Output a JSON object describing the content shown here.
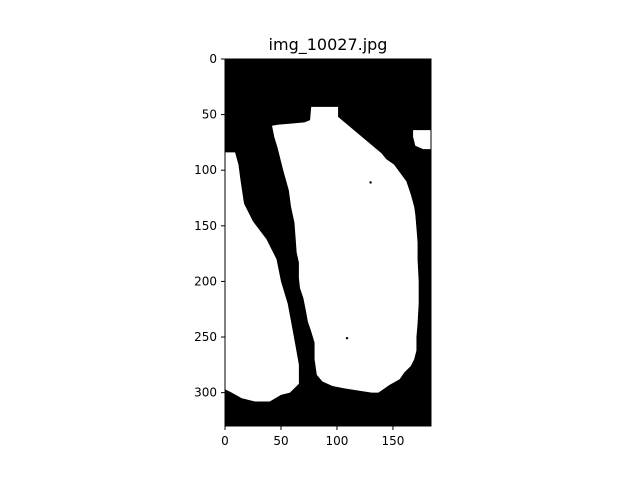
{
  "chart_data": {
    "type": "heatmap",
    "title": "img_10027.jpg",
    "xlabel": "",
    "ylabel": "",
    "xlim": [
      0,
      184
    ],
    "ylim": [
      330,
      0
    ],
    "x_ticks": [
      0,
      50,
      100,
      150
    ],
    "y_ticks": [
      0,
      50,
      100,
      150,
      200,
      250,
      300
    ],
    "colormap": "binary (black background, white foreground)",
    "colors": {
      "background": "#000000",
      "foreground": "#ffffff"
    },
    "regions": [
      {
        "name": "",
        "polygon": [
          [
            77,
            43
          ],
          [
            101,
            43
          ],
          [
            101,
            52
          ],
          [
            140,
            85
          ],
          [
            144,
            90
          ],
          [
            151,
            95
          ],
          [
            162,
            110
          ],
          [
            166,
            122
          ],
          [
            169,
            133
          ],
          [
            170,
            140
          ],
          [
            171,
            152
          ],
          [
            172,
            165
          ],
          [
            172,
            180
          ],
          [
            173,
            200
          ],
          [
            173,
            220
          ],
          [
            172,
            238
          ],
          [
            171,
            250
          ],
          [
            171,
            262
          ],
          [
            169,
            270
          ],
          [
            166,
            276
          ],
          [
            160,
            282
          ],
          [
            156,
            288
          ],
          [
            147,
            293
          ],
          [
            137,
            300
          ],
          [
            131,
            300
          ],
          [
            118,
            298
          ],
          [
            106,
            296
          ],
          [
            96,
            294
          ],
          [
            87,
            290
          ],
          [
            82,
            284
          ],
          [
            80,
            270
          ],
          [
            80,
            255
          ],
          [
            77,
            245
          ],
          [
            74,
            236
          ],
          [
            72,
            225
          ],
          [
            70,
            215
          ],
          [
            67,
            206
          ],
          [
            66,
            197
          ],
          [
            66,
            183
          ],
          [
            64,
            174
          ],
          [
            63,
            160
          ],
          [
            62,
            147
          ],
          [
            59,
            133
          ],
          [
            57,
            118
          ],
          [
            52,
            100
          ],
          [
            49,
            88
          ],
          [
            47,
            80
          ],
          [
            44,
            70
          ],
          [
            42,
            60
          ],
          [
            48,
            59
          ],
          [
            60,
            58
          ],
          [
            71,
            57
          ],
          [
            76,
            55
          ]
        ]
      },
      {
        "name": "",
        "polygon": [
          [
            0,
            84
          ],
          [
            9,
            84
          ],
          [
            12,
            95
          ],
          [
            14,
            110
          ],
          [
            17,
            130
          ],
          [
            25,
            146
          ],
          [
            37,
            162
          ],
          [
            46,
            180
          ],
          [
            50,
            200
          ],
          [
            56,
            220
          ],
          [
            59,
            236
          ],
          [
            63,
            258
          ],
          [
            66,
            275
          ],
          [
            66,
            292
          ],
          [
            58,
            300
          ],
          [
            50,
            302
          ],
          [
            40,
            308
          ],
          [
            27,
            308
          ],
          [
            15,
            305
          ],
          [
            6,
            300
          ],
          [
            0,
            297
          ]
        ]
      },
      {
        "name": "",
        "polygon": [
          [
            168,
            64
          ],
          [
            184,
            64
          ],
          [
            184,
            81
          ],
          [
            177,
            81
          ],
          [
            170,
            78
          ],
          [
            168,
            70
          ]
        ]
      }
    ],
    "specks": [
      [
        130,
        111
      ],
      [
        109,
        251
      ]
    ]
  }
}
